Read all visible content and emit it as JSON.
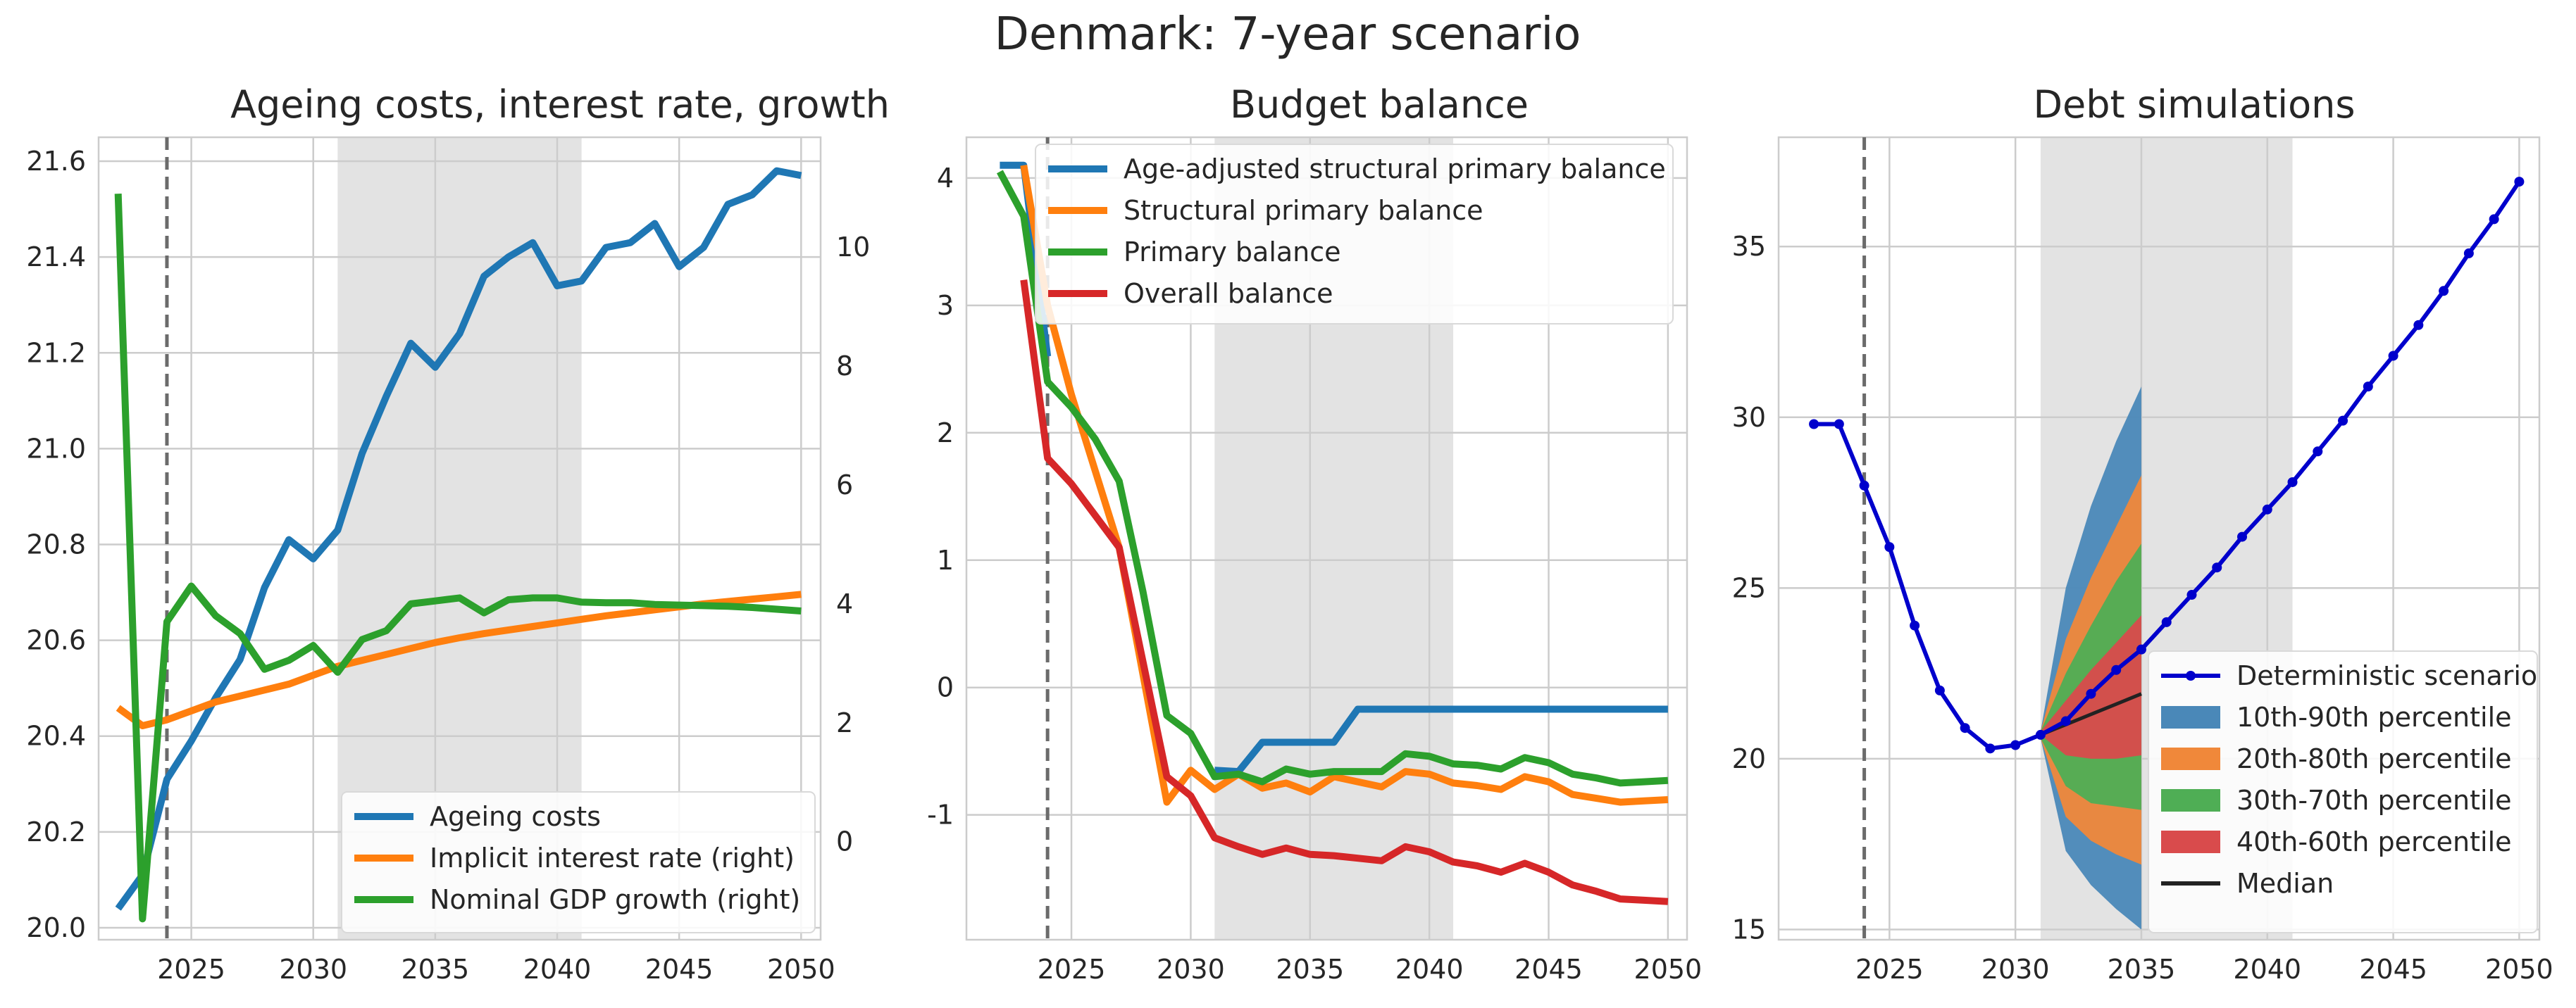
{
  "suptitle": "Denmark: 7-year scenario",
  "colors": {
    "blue": "#1f77b4",
    "orange": "#ff7f0e",
    "green": "#2ca02c",
    "red": "#d62728",
    "det": "#0000cc",
    "grid": "#cccccc",
    "shade": "#e3e3e3",
    "axes": "#cccccc"
  },
  "chart_data": [
    {
      "type": "line",
      "title": "Ageing costs, interest rate, growth",
      "xlim": [
        2021.2,
        2050.8
      ],
      "ylim": [
        19.975,
        21.65
      ],
      "y2lim": [
        -1.65,
        11.85
      ],
      "x_ticks": [
        2025,
        2030,
        2035,
        2040,
        2045,
        2050
      ],
      "y_ticks": [
        20.0,
        20.2,
        20.4,
        20.6,
        20.8,
        21.0,
        21.2,
        21.4,
        21.6
      ],
      "y2_ticks": [
        0,
        2,
        4,
        6,
        8,
        10
      ],
      "shaded_x": [
        2031,
        2041
      ],
      "vline_x": 2024,
      "grid": true,
      "legend_position": "lower right",
      "x": [
        2022,
        2023,
        2024,
        2025,
        2026,
        2027,
        2028,
        2029,
        2030,
        2031,
        2032,
        2033,
        2034,
        2035,
        2036,
        2037,
        2038,
        2039,
        2040,
        2041,
        2042,
        2043,
        2044,
        2045,
        2046,
        2047,
        2048,
        2049,
        2050
      ],
      "series": [
        {
          "name": "Ageing costs",
          "axis": "left",
          "color": "blue",
          "values": [
            20.04,
            20.11,
            20.31,
            20.39,
            20.48,
            20.56,
            20.71,
            20.81,
            20.77,
            20.83,
            20.99,
            21.11,
            21.22,
            21.17,
            21.24,
            21.36,
            21.4,
            21.43,
            21.34,
            21.35,
            21.42,
            21.43,
            21.47,
            21.38,
            21.42,
            21.51,
            21.53,
            21.58,
            21.57
          ]
        },
        {
          "name": "Implicit interest rate (right)",
          "axis": "right",
          "color": "orange",
          "values": [
            2.25,
            1.95,
            2.05,
            2.2,
            2.35,
            2.45,
            2.55,
            2.65,
            2.8,
            2.95,
            3.05,
            3.15,
            3.25,
            3.35,
            3.43,
            3.5,
            3.56,
            3.62,
            3.68,
            3.74,
            3.8,
            3.85,
            3.9,
            3.95,
            4.0,
            4.04,
            4.08,
            4.12,
            4.16
          ]
        },
        {
          "name": "Nominal GDP growth (right)",
          "axis": "right",
          "color": "green",
          "values": [
            10.9,
            -1.3,
            3.7,
            4.3,
            3.8,
            3.5,
            2.9,
            3.05,
            3.3,
            2.85,
            3.4,
            3.55,
            4.0,
            4.05,
            4.1,
            3.85,
            4.07,
            4.1,
            4.1,
            4.03,
            4.02,
            4.02,
            3.99,
            3.98,
            3.97,
            3.96,
            3.94,
            3.91,
            3.88
          ]
        }
      ]
    },
    {
      "type": "line",
      "title": "Budget balance",
      "xlim": [
        2020.6,
        2050.8
      ],
      "ylim": [
        -1.98,
        4.32
      ],
      "x_ticks": [
        2025,
        2030,
        2035,
        2040,
        2045,
        2050
      ],
      "y_ticks": [
        -1,
        0,
        1,
        2,
        3,
        4
      ],
      "shaded_x": [
        2031,
        2041
      ],
      "vline_x": 2024,
      "grid": true,
      "legend_position": "upper right",
      "x": [
        2022,
        2023,
        2024,
        2025,
        2026,
        2027,
        2028,
        2029,
        2030,
        2031,
        2032,
        2033,
        2034,
        2035,
        2036,
        2037,
        2038,
        2039,
        2040,
        2041,
        2042,
        2043,
        2044,
        2045,
        2046,
        2047,
        2048,
        2049,
        2050
      ],
      "series": [
        {
          "name": "Age-adjusted structural primary balance",
          "color": "blue",
          "values": [
            4.1,
            4.1,
            2.6,
            null,
            null,
            null,
            null,
            null,
            null,
            -0.65,
            -0.66,
            -0.43,
            -0.43,
            -0.43,
            -0.43,
            -0.17,
            -0.17,
            -0.17,
            -0.17,
            -0.17,
            -0.17,
            -0.17,
            -0.17,
            -0.17,
            -0.17,
            -0.17,
            -0.17,
            -0.17,
            -0.17
          ]
        },
        {
          "name": "Structural primary balance",
          "color": "orange",
          "values": [
            null,
            4.1,
            3.0,
            2.3,
            1.7,
            1.1,
            0.1,
            -0.9,
            -0.65,
            -0.8,
            -0.68,
            -0.79,
            -0.75,
            -0.82,
            -0.7,
            -0.74,
            -0.78,
            -0.66,
            -0.68,
            -0.75,
            -0.77,
            -0.8,
            -0.7,
            -0.74,
            -0.84,
            -0.87,
            -0.9,
            -0.89,
            -0.88
          ]
        },
        {
          "name": "Primary balance",
          "color": "green",
          "values": [
            4.05,
            3.7,
            2.4,
            2.2,
            1.95,
            1.62,
            0.75,
            -0.22,
            -0.36,
            -0.7,
            -0.68,
            -0.74,
            -0.64,
            -0.68,
            -0.66,
            -0.66,
            -0.66,
            -0.52,
            -0.54,
            -0.6,
            -0.61,
            -0.64,
            -0.55,
            -0.59,
            -0.68,
            -0.71,
            -0.75,
            -0.74,
            -0.73
          ]
        },
        {
          "name": "Overall balance",
          "color": "red",
          "values": [
            null,
            3.2,
            1.8,
            1.6,
            1.35,
            1.1,
            0.2,
            -0.7,
            -0.85,
            -1.18,
            -1.25,
            -1.31,
            -1.26,
            -1.31,
            -1.32,
            -1.34,
            -1.36,
            -1.25,
            -1.29,
            -1.37,
            -1.4,
            -1.45,
            -1.38,
            -1.45,
            -1.55,
            -1.6,
            -1.66,
            -1.67,
            -1.68
          ]
        }
      ]
    },
    {
      "type": "line",
      "title": "Debt simulations",
      "xlim": [
        2020.6,
        2050.8
      ],
      "ylim": [
        14.7,
        38.2
      ],
      "x_ticks": [
        2025,
        2030,
        2035,
        2040,
        2045,
        2050
      ],
      "y_ticks": [
        15,
        20,
        25,
        30,
        35
      ],
      "shaded_x": [
        2031,
        2041
      ],
      "vline_x": 2024,
      "grid": true,
      "legend_position": "lower right",
      "x": [
        2022,
        2023,
        2024,
        2025,
        2026,
        2027,
        2028,
        2029,
        2030,
        2031,
        2032,
        2033,
        2034,
        2035,
        2036,
        2037,
        2038,
        2039,
        2040,
        2041,
        2042,
        2043,
        2044,
        2045,
        2046,
        2047,
        2048,
        2049,
        2050
      ],
      "series": [
        {
          "name": "Deterministic scenario",
          "color": "det",
          "marker": "dot",
          "values": [
            29.8,
            29.8,
            28.0,
            26.2,
            23.9,
            22.0,
            20.9,
            20.3,
            20.4,
            20.7,
            21.1,
            21.9,
            22.6,
            23.2,
            24.0,
            24.8,
            25.6,
            26.5,
            27.3,
            28.1,
            29.0,
            29.9,
            30.9,
            31.8,
            32.7,
            33.7,
            34.8,
            35.8,
            36.9
          ]
        }
      ],
      "fan": {
        "x": [
          2031,
          2032,
          2033,
          2034,
          2035
        ],
        "bands": [
          {
            "name": "10th-90th percentile",
            "color": "#4a88b8",
            "low": [
              20.6,
              17.3,
              16.3,
              15.6,
              15.0
            ],
            "high": [
              20.8,
              25.0,
              27.4,
              29.3,
              30.9
            ]
          },
          {
            "name": "20th-80th percentile",
            "color": "#f0883a",
            "low": [
              20.6,
              18.3,
              17.6,
              17.2,
              16.9
            ],
            "high": [
              20.8,
              23.5,
              25.3,
              26.8,
              28.3
            ]
          },
          {
            "name": "30th-70th percentile",
            "color": "#4fae55",
            "low": [
              20.6,
              19.2,
              18.7,
              18.6,
              18.5
            ],
            "high": [
              20.8,
              22.5,
              23.9,
              25.2,
              26.3
            ]
          },
          {
            "name": "40th-60th percentile",
            "color": "#d94b4c",
            "low": [
              20.7,
              20.1,
              20.0,
              20.0,
              20.1
            ],
            "high": [
              20.8,
              21.7,
              22.6,
              23.4,
              24.2
            ]
          }
        ],
        "median": {
          "name": "Median",
          "color": "#222222",
          "values": [
            20.7,
            21.0,
            21.3,
            21.6,
            21.9
          ]
        }
      }
    }
  ]
}
